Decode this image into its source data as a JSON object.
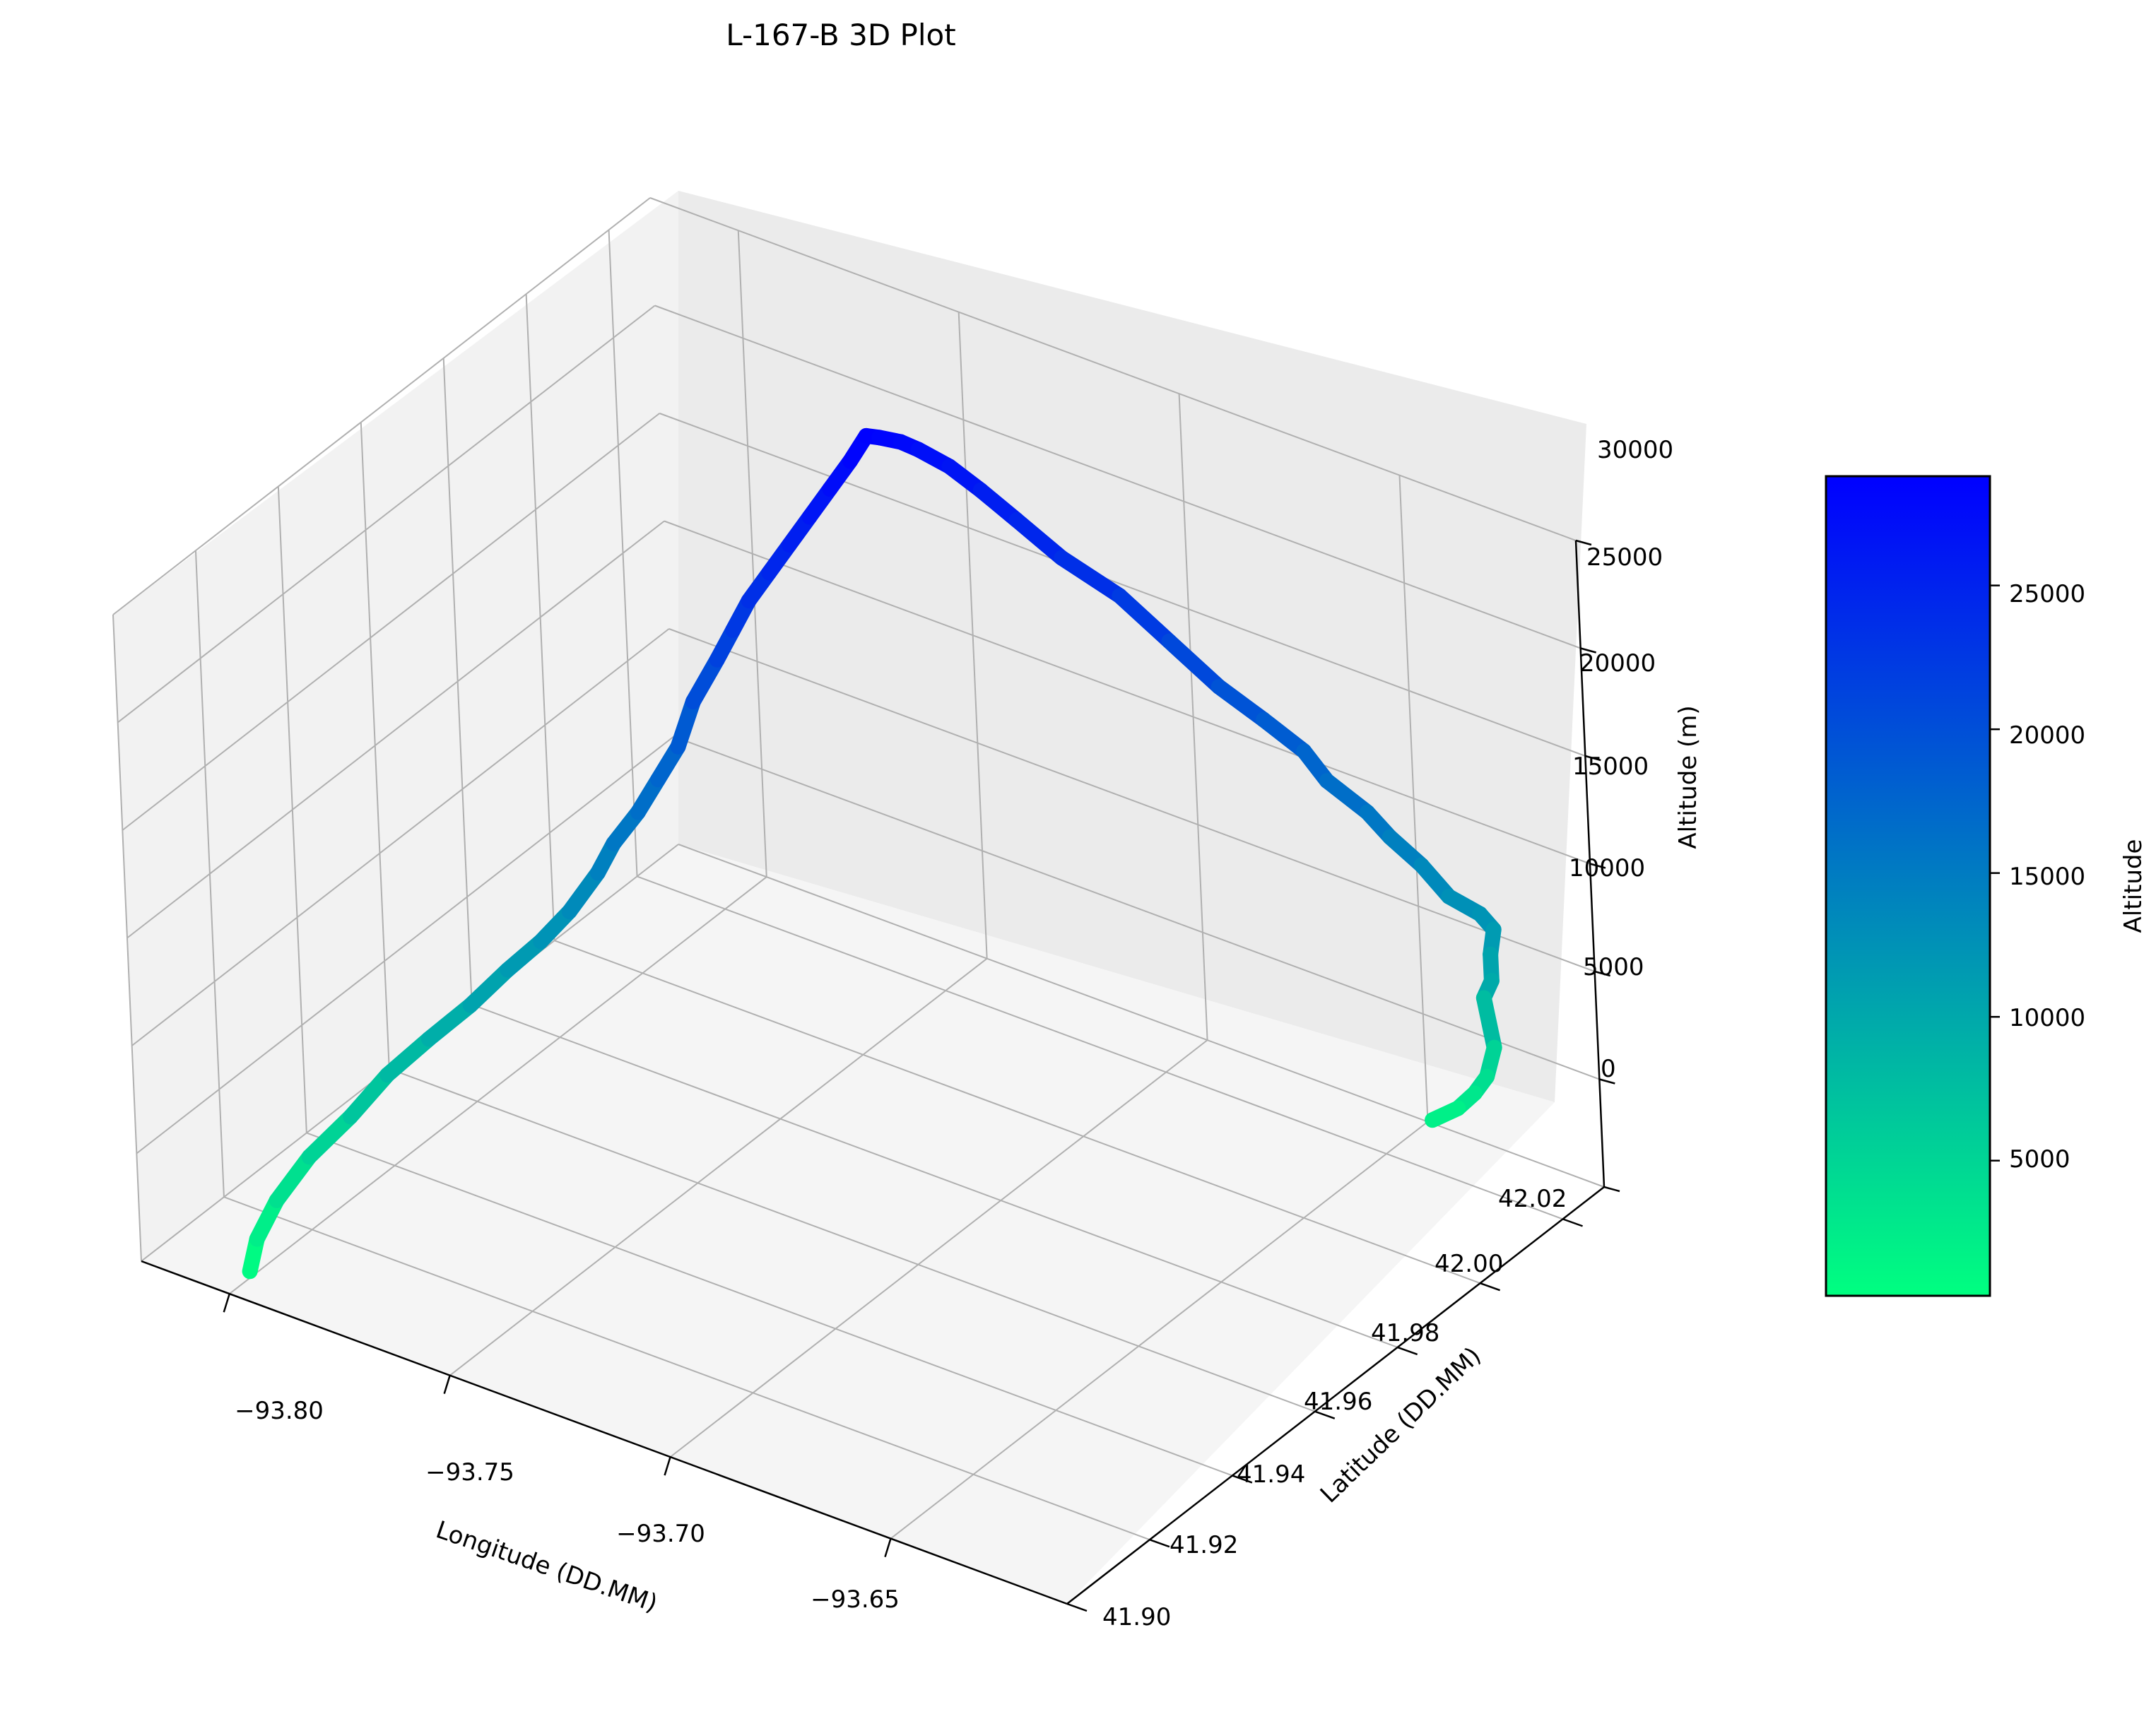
{
  "chart_data": {
    "type": "line3d",
    "title": "L-167-B 3D Plot",
    "xlabel": "Longitude (DD.MM)",
    "ylabel": "Latitude (DD.MM)",
    "zlabel": "Altitude (m)",
    "xlim": [
      -93.82,
      -93.61
    ],
    "ylim": [
      41.9,
      42.03
    ],
    "zlim": [
      0,
      30000
    ],
    "xticks": [
      "−93.80",
      "−93.75",
      "−93.70",
      "−93.65"
    ],
    "yticks": [
      "41.90",
      "41.92",
      "41.94",
      "41.96",
      "41.98",
      "42.00",
      "42.02"
    ],
    "zticks": [
      "0",
      "5000",
      "10000",
      "15000",
      "20000",
      "25000",
      "30000"
    ],
    "grid": true,
    "colormap": {
      "name": "winter_r",
      "low_color": "#00ff80",
      "high_color": "#0000ff",
      "label": "Altitude",
      "range": [
        300,
        28800
      ],
      "ticks": [
        "5000",
        "10000",
        "15000",
        "20000",
        "25000"
      ]
    },
    "series": [
      {
        "x": [
          -93.8,
          -93.8,
          -93.798,
          -93.795,
          -93.79,
          -93.786,
          -93.781,
          -93.776,
          -93.772,
          -93.769,
          -93.767,
          -93.765,
          -93.764,
          -93.762,
          -93.761,
          -93.76,
          -93.76,
          -93.758,
          -93.757,
          -93.756,
          -93.754,
          -93.752,
          -93.75,
          -93.748,
          -93.746,
          -93.745,
          -93.744,
          -93.742,
          -93.74,
          -93.735,
          -93.729,
          -93.722,
          -93.712,
          -93.7,
          -93.69,
          -93.68,
          -93.671,
          -93.663,
          -93.658,
          -93.65,
          -93.646,
          -93.64,
          -93.634,
          -93.628,
          -93.625,
          -93.625,
          -93.624,
          -93.624,
          -93.628,
          -93.63,
          -93.633,
          -93.637,
          -93.643
        ],
        "y": [
          41.905,
          41.907,
          41.91,
          41.915,
          41.92,
          41.925,
          41.93,
          41.935,
          41.94,
          41.945,
          41.95,
          41.955,
          41.958,
          41.962,
          41.966,
          41.97,
          41.974,
          41.978,
          41.981,
          41.984,
          41.987,
          41.99,
          41.993,
          41.996,
          41.999,
          42.002,
          42.004,
          42.007,
          42.009,
          42.011,
          42.012,
          42.013,
          42.013,
          42.014,
          42.015,
          42.016,
          42.017,
          42.018,
          42.018,
          42.019,
          42.02,
          42.021,
          42.021,
          42.022,
          42.022,
          42.021,
          42.02,
          42.018,
          42.024,
          42.024,
          42.024,
          42.024,
          42.024
        ],
        "z": [
          300,
          1500,
          3000,
          4500,
          6000,
          7500,
          8800,
          10000,
          11200,
          12000,
          12800,
          14000,
          15000,
          16000,
          17000,
          18000,
          19500,
          21000,
          22000,
          23000,
          24000,
          25000,
          26000,
          27000,
          28000,
          28800,
          28500,
          28000,
          27500,
          26800,
          26000,
          25000,
          24000,
          23000,
          21500,
          20000,
          19000,
          18000,
          17000,
          16000,
          15000,
          14000,
          13000,
          12500,
          12000,
          11000,
          10000,
          9500,
          6000,
          4500,
          3500,
          2500,
          1500
        ]
      }
    ]
  }
}
